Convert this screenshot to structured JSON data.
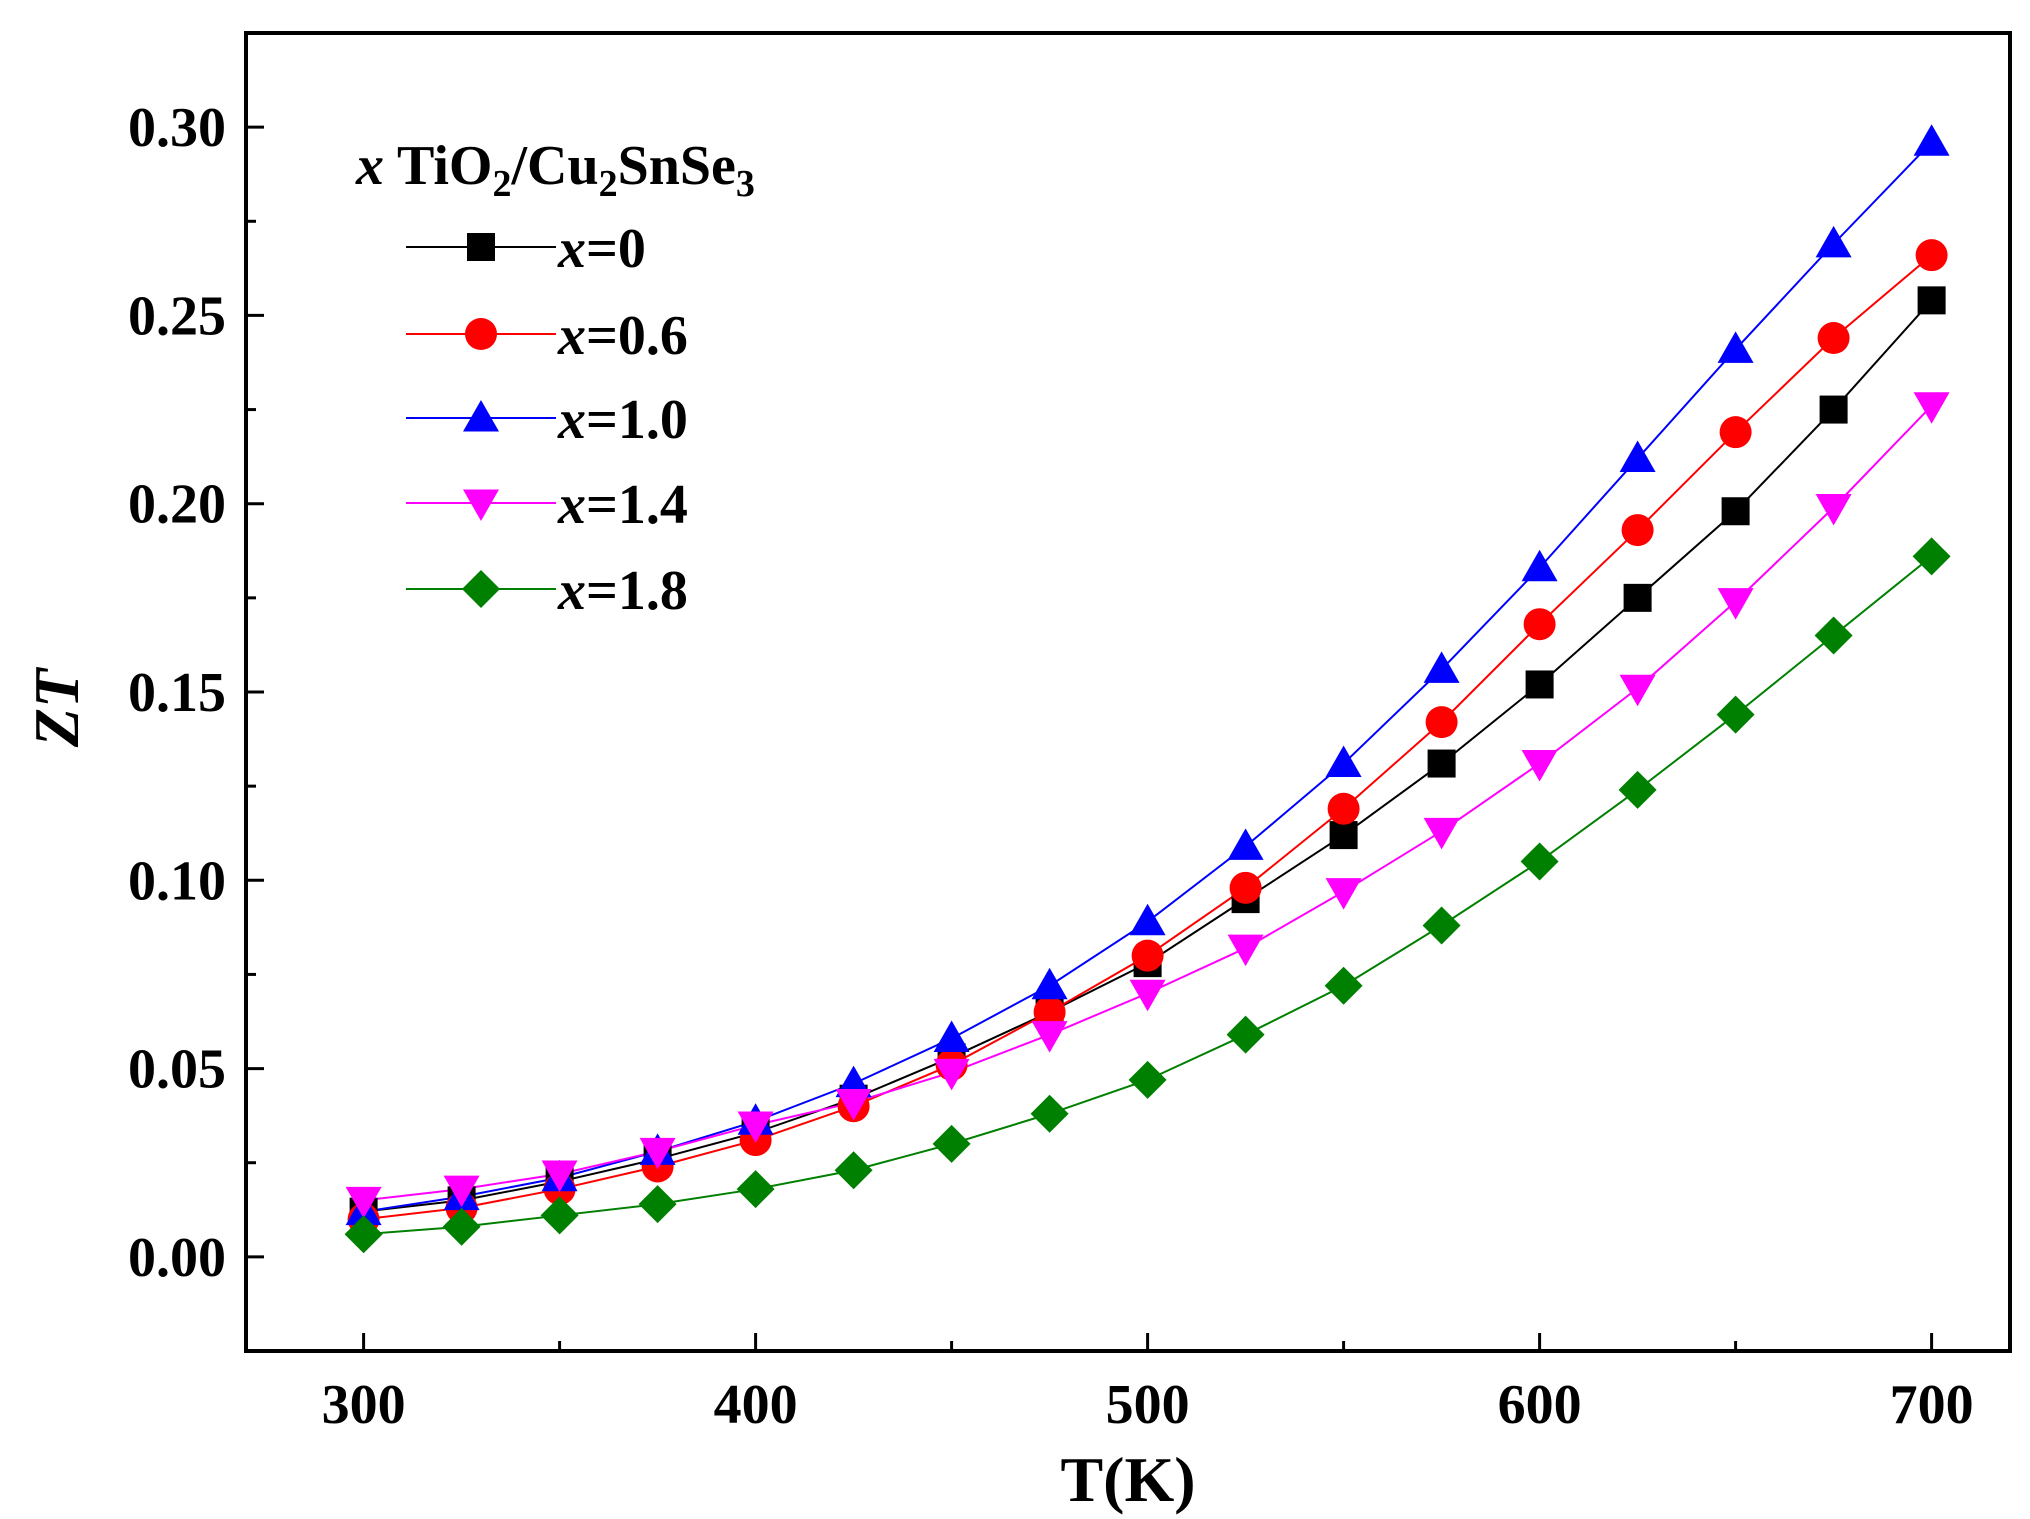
{
  "chart_data": {
    "type": "line",
    "title": "",
    "xlabel": "T(K)",
    "ylabel": "ZT",
    "xlim": [
      270,
      720
    ],
    "ylim": [
      -0.025,
      0.325
    ],
    "x_ticks": [
      300,
      400,
      500,
      600,
      700
    ],
    "y_ticks": [
      0.0,
      0.05,
      0.1,
      0.15,
      0.2,
      0.25,
      0.3
    ],
    "y_tick_labels": [
      "0.00",
      "0.05",
      "0.10",
      "0.15",
      "0.20",
      "0.25",
      "0.30"
    ],
    "x_tick_labels": [
      "300",
      "400",
      "500",
      "600",
      "700"
    ],
    "legend": {
      "placement": "top-left",
      "title_parts": {
        "var": "x",
        "t1": " TiO",
        "s1": "2",
        "t2": "/Cu",
        "s2": "2",
        "t3": "SnSe",
        "s3": "3"
      }
    },
    "x": [
      300,
      325,
      350,
      375,
      400,
      425,
      450,
      475,
      500,
      525,
      550,
      575,
      600,
      625,
      650,
      675,
      700
    ],
    "series": [
      {
        "var": "x",
        "label": "=0",
        "color": "#000000",
        "marker": "square",
        "values": [
          0.012,
          0.015,
          0.02,
          0.026,
          0.033,
          0.042,
          0.053,
          0.065,
          0.078,
          0.095,
          0.112,
          0.131,
          0.152,
          0.175,
          0.198,
          0.225,
          0.254
        ]
      },
      {
        "var": "x",
        "label": "=0.6",
        "color": "#ff0000",
        "marker": "circle",
        "values": [
          0.01,
          0.013,
          0.018,
          0.024,
          0.031,
          0.04,
          0.051,
          0.065,
          0.08,
          0.098,
          0.119,
          0.142,
          0.168,
          0.193,
          0.219,
          0.244,
          0.266
        ]
      },
      {
        "var": "x",
        "label": "=1.0",
        "color": "#0000ff",
        "marker": "triangle-up",
        "values": [
          0.012,
          0.016,
          0.021,
          0.028,
          0.036,
          0.046,
          0.058,
          0.072,
          0.089,
          0.109,
          0.131,
          0.156,
          0.183,
          0.212,
          0.241,
          0.269,
          0.296
        ]
      },
      {
        "var": "x",
        "label": "=1.4",
        "color": "#ff00ff",
        "marker": "triangle-down",
        "values": [
          0.015,
          0.018,
          0.022,
          0.028,
          0.035,
          0.041,
          0.049,
          0.059,
          0.07,
          0.082,
          0.097,
          0.113,
          0.131,
          0.151,
          0.174,
          0.199,
          0.226
        ]
      },
      {
        "var": "x",
        "label": "=1.8",
        "color": "#008000",
        "marker": "diamond",
        "values": [
          0.006,
          0.008,
          0.011,
          0.014,
          0.018,
          0.023,
          0.03,
          0.038,
          0.047,
          0.059,
          0.072,
          0.088,
          0.105,
          0.124,
          0.144,
          0.165,
          0.186
        ]
      }
    ]
  }
}
